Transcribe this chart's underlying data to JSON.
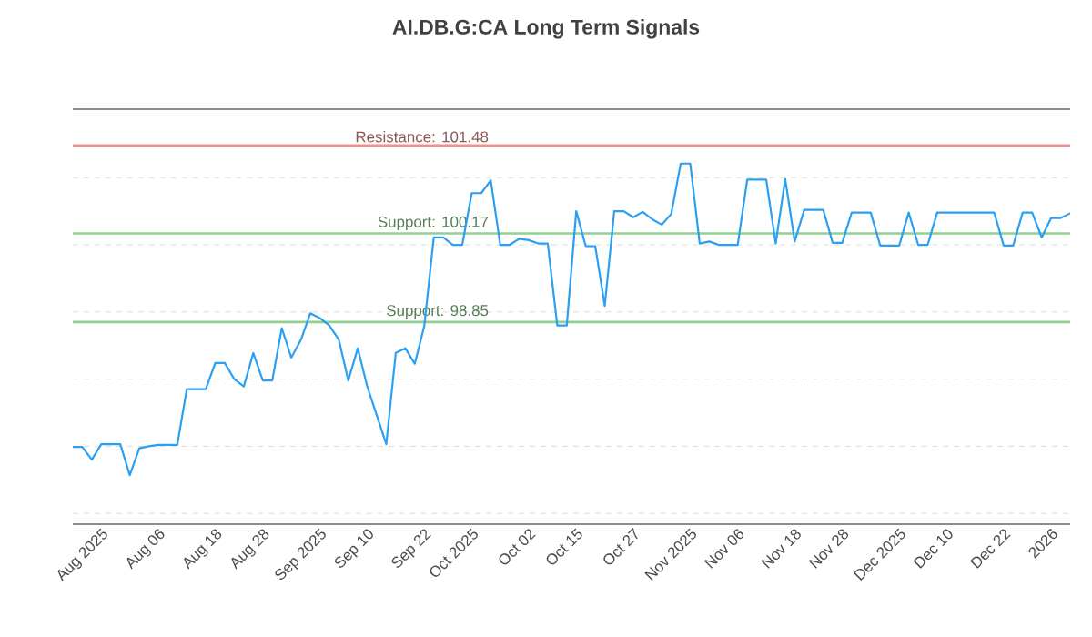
{
  "chart_data": {
    "type": "line",
    "title": "AI.DB.G:CA Long Term Signals",
    "categories": [
      null,
      null,
      null,
      "Aug 2025",
      null,
      null,
      null,
      null,
      null,
      "Aug 06",
      null,
      null,
      null,
      null,
      null,
      "Aug 18",
      null,
      null,
      null,
      null,
      "Aug 28",
      null,
      null,
      null,
      null,
      null,
      "Sep 2025",
      null,
      null,
      null,
      null,
      "Sep 10",
      null,
      null,
      null,
      null,
      null,
      "Sep 22",
      null,
      null,
      null,
      null,
      "Oct 2025",
      null,
      null,
      null,
      null,
      null,
      "Oct 02",
      null,
      null,
      null,
      null,
      "Oct 15",
      null,
      null,
      null,
      null,
      null,
      "Oct 27",
      null,
      null,
      null,
      null,
      null,
      "Nov 2025",
      null,
      null,
      null,
      null,
      "Nov 06",
      null,
      null,
      null,
      null,
      null,
      "Nov 18",
      null,
      null,
      null,
      null,
      "Nov 28",
      null,
      null,
      null,
      null,
      null,
      "Dec 2025",
      null,
      null,
      null,
      null,
      "Dec 10",
      null,
      null,
      null,
      null,
      null,
      "Dec 22",
      null,
      null,
      null,
      null,
      "2026",
      null,
      null
    ],
    "ylim": [
      95.84,
      102.02
    ],
    "yticks": [
      {
        "value": 96,
        "label": null
      },
      {
        "value": 97,
        "label": null
      },
      {
        "value": 98,
        "label": null
      },
      {
        "value": 99,
        "label": null
      },
      {
        "value": 100,
        "label": null
      },
      {
        "value": 101,
        "label": null
      }
    ],
    "tick_labels": "x",
    "grid": "y",
    "marker": "none",
    "line_style": "solid",
    "ref_lines": [
      {
        "axis": "y",
        "value": 101.48,
        "label": "Resistance: 101.48",
        "color": "#f09090"
      },
      {
        "axis": "y",
        "value": 100.17,
        "label": "Support: 100.17",
        "color": "#90d090"
      },
      {
        "axis": "y",
        "value": 98.85,
        "label": "Support: 98.85",
        "color": "#90d090"
      }
    ],
    "series": [
      {
        "color": "#2b9ff2",
        "values": [
          96.99,
          96.99,
          96.8,
          97.03,
          97.03,
          97.03,
          96.57,
          96.97,
          97.0,
          97.02,
          97.02,
          97.02,
          97.85,
          97.85,
          97.85,
          98.24,
          98.24,
          98.0,
          97.89,
          98.39,
          97.98,
          97.98,
          98.76,
          98.32,
          98.58,
          98.98,
          98.91,
          98.8,
          98.59,
          97.98,
          98.46,
          97.89,
          97.46,
          97.03,
          98.39,
          98.46,
          98.23,
          98.79,
          100.11,
          100.11,
          100.0,
          100.0,
          100.77,
          100.77,
          100.96,
          100.0,
          100.0,
          100.09,
          100.07,
          100.02,
          100.02,
          98.8,
          98.8,
          100.5,
          99.98,
          99.98,
          99.09,
          100.5,
          100.5,
          100.41,
          100.49,
          100.38,
          100.3,
          100.46,
          101.21,
          101.21,
          100.02,
          100.05,
          100.0,
          100.0,
          100.0,
          100.97,
          100.97,
          100.97,
          100.02,
          100.98,
          100.05,
          100.52,
          100.52,
          100.52,
          100.03,
          100.03,
          100.48,
          100.48,
          100.48,
          99.99,
          99.99,
          99.99,
          100.48,
          100.0,
          100.0,
          100.48,
          100.48,
          100.48,
          100.48,
          100.48,
          100.48,
          100.48,
          99.99,
          99.99,
          100.48,
          100.48,
          100.11,
          100.4,
          100.4,
          100.47
        ]
      }
    ]
  }
}
